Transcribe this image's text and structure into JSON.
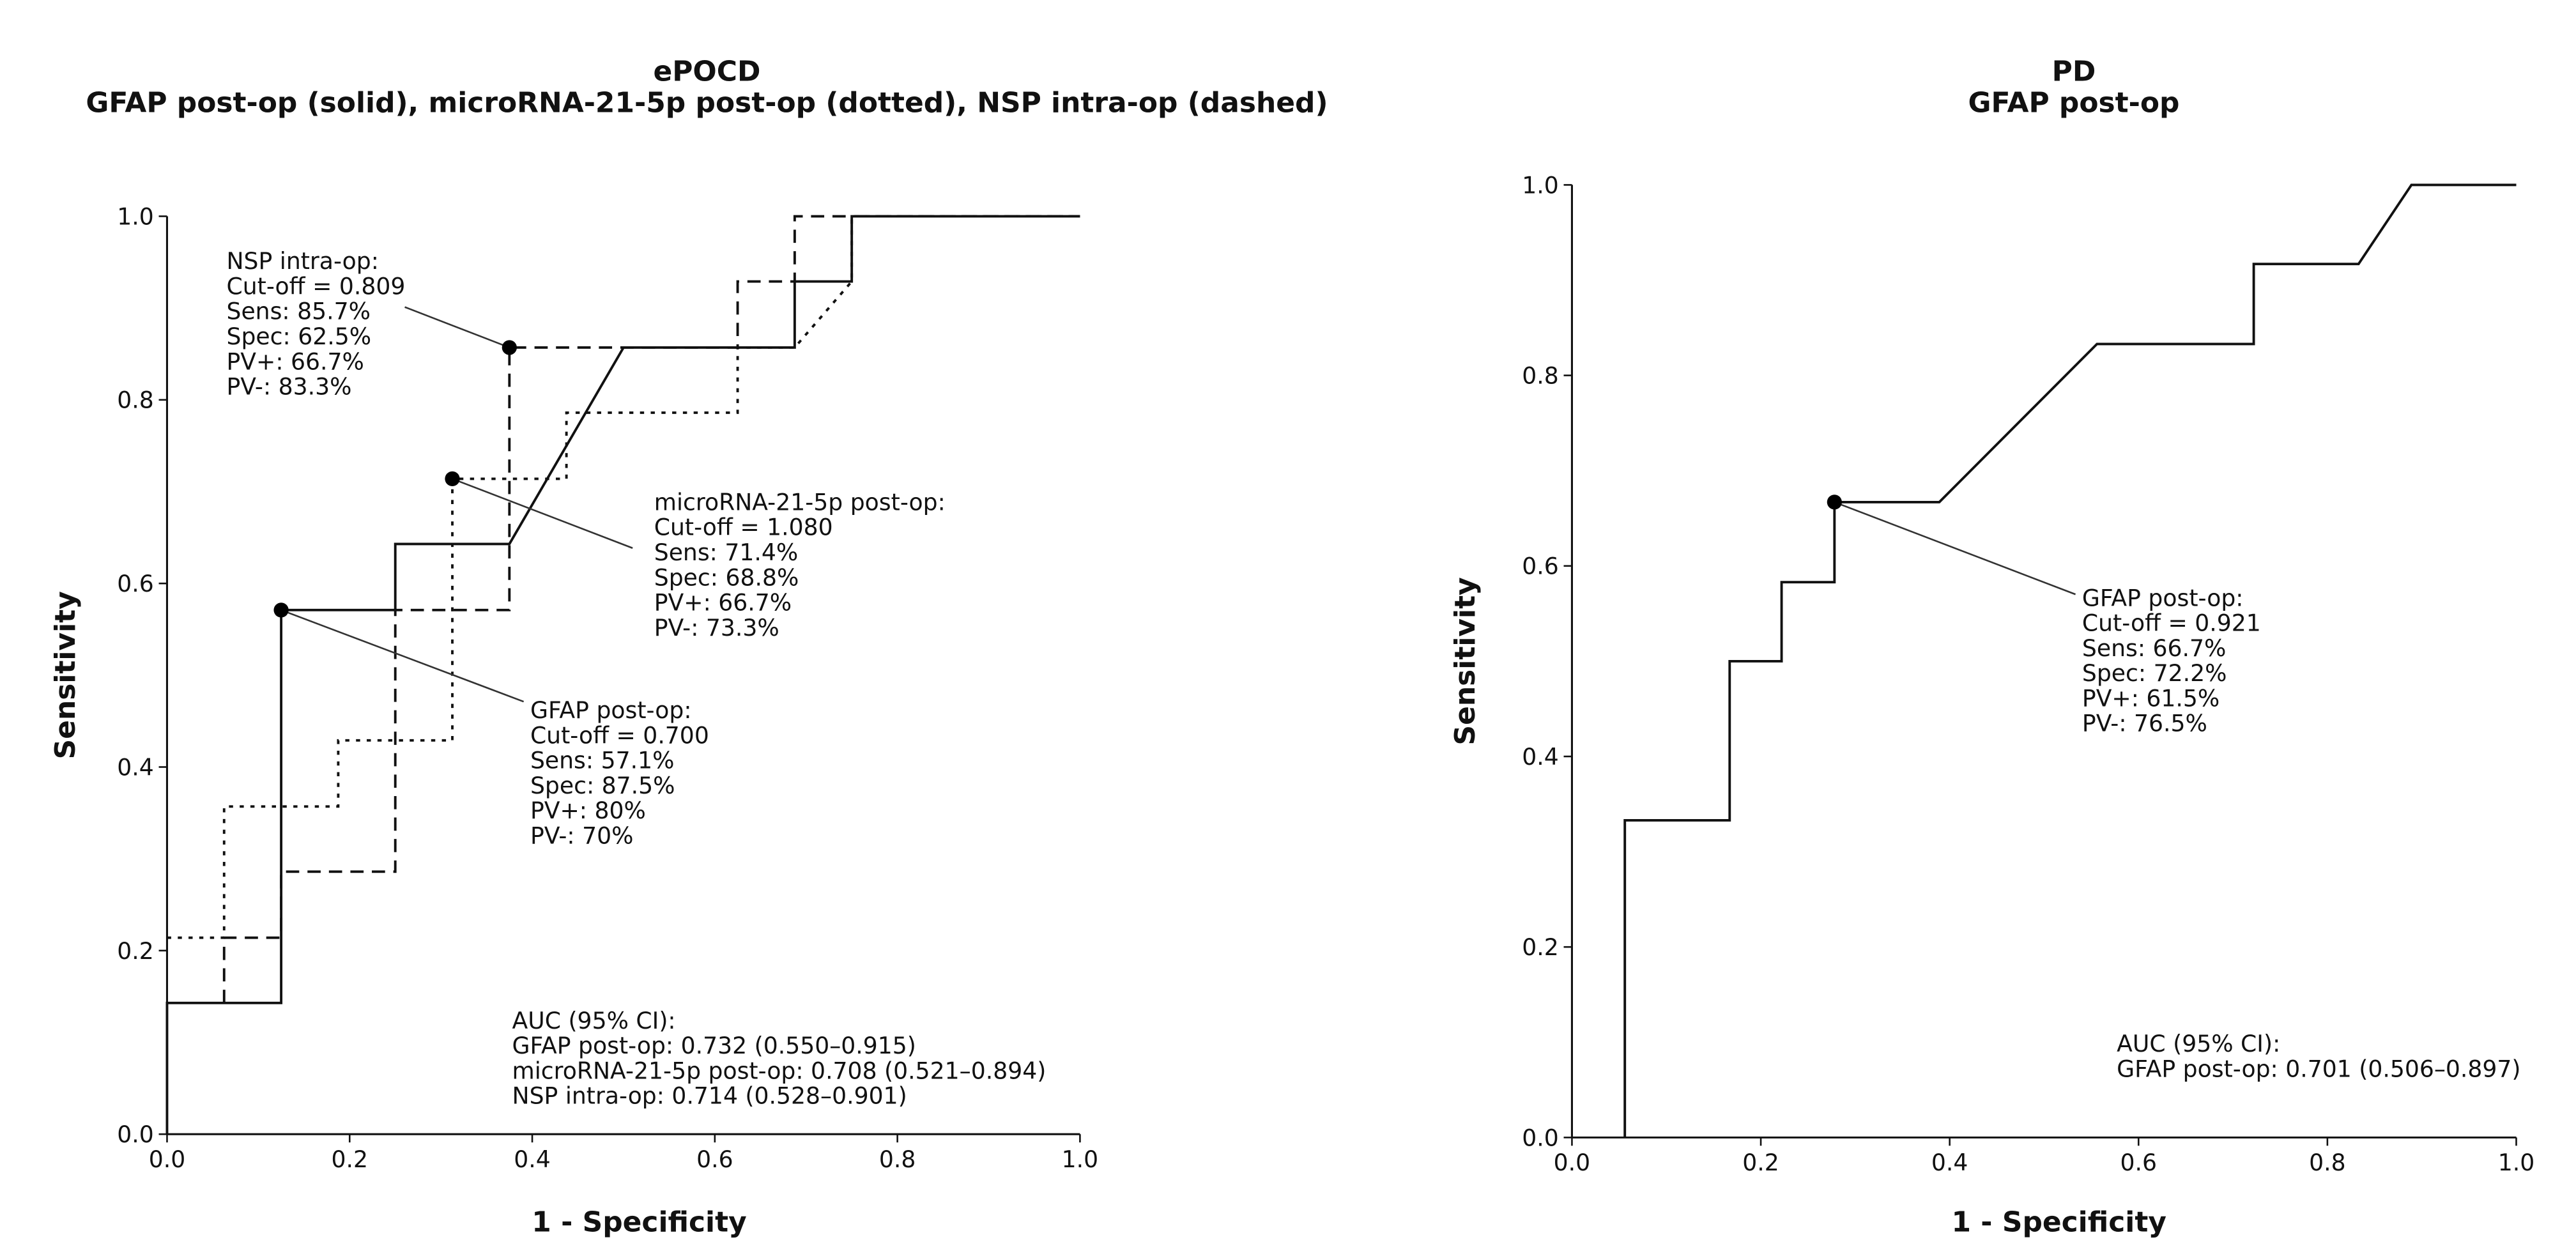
{
  "chart_data": [
    {
      "type": "line",
      "title": "ePOCD",
      "subtitle": "GFAP post-op (solid), microRNA-21-5p post-op (dotted), NSP intra-op (dashed)",
      "xlabel": "1 - Specificity",
      "ylabel": "Sensitivity",
      "xlim": [
        0,
        1
      ],
      "ylim": [
        0,
        1
      ],
      "xticks": [
        {
          "value": 0,
          "label": "0.0"
        },
        0.2,
        0.4,
        0.6,
        0.8,
        {
          "value": 1,
          "label": "1.0"
        }
      ],
      "yticks": [
        {
          "value": 0,
          "label": "0.0"
        },
        0.2,
        0.4,
        0.6,
        0.8,
        {
          "value": 1,
          "label": "1.0"
        }
      ],
      "series": [
        {
          "color": "#111111",
          "style": "solid",
          "x": [
            0,
            0,
            0.125,
            0.125,
            0.25,
            0.25,
            0.375,
            0.5,
            0.6875,
            0.6875,
            0.75,
            0.75,
            1
          ],
          "y": [
            0,
            0.143,
            0.143,
            0.571,
            0.571,
            0.643,
            0.643,
            0.857,
            0.857,
            0.929,
            0.929,
            1,
            1
          ]
        },
        {
          "color": "#111111",
          "style": "dotted",
          "x": [
            0,
            0.0625,
            0.0625,
            0.1875,
            0.1875,
            0.3125,
            0.3125,
            0.4375,
            0.4375,
            0.625,
            0.625,
            0.6875,
            0.75,
            0.75,
            1
          ],
          "y": [
            0.214,
            0.214,
            0.357,
            0.357,
            0.429,
            0.429,
            0.714,
            0.714,
            0.786,
            0.786,
            0.857,
            0.857,
            0.929,
            1,
            1
          ]
        },
        {
          "color": "#111111",
          "style": "dashed",
          "x": [
            0.0625,
            0.0625,
            0.125,
            0.125,
            0.25,
            0.25,
            0.375,
            0.375,
            0.625,
            0.625,
            0.6875,
            0.6875,
            1
          ],
          "y": [
            0.143,
            0.214,
            0.214,
            0.286,
            0.286,
            0.571,
            0.571,
            0.857,
            0.857,
            0.929,
            0.929,
            1,
            1
          ]
        }
      ],
      "annotations": [
        {
          "x": 0.375,
          "y": 0.857,
          "lines": [
            "NSP intra-op:",
            "Cut-off = 0.809",
            "Sens: 85.7%",
            "Spec: 62.5%",
            "PV+: 66.7%",
            "PV-: 83.3%"
          ]
        },
        {
          "x": 0.3125,
          "y": 0.714,
          "lines": [
            "microRNA-21-5p post-op:",
            "Cut-off = 1.080",
            "Sens: 71.4%",
            "Spec: 68.8%",
            "PV+: 66.7%",
            "PV-: 73.3%"
          ]
        },
        {
          "x": 0.125,
          "y": 0.571,
          "lines": [
            "GFAP post-op:",
            "Cut-off = 0.700",
            "Sens: 57.1%",
            "Spec: 87.5%",
            "PV+: 80%",
            "PV-: 70%"
          ]
        }
      ],
      "auc_text": [
        "AUC (95% CI):",
        "GFAP post-op: 0.732 (0.550–0.915)",
        "microRNA-21-5p post-op: 0.708 (0.521–0.894)",
        "NSP intra-op: 0.714 (0.528–0.901)"
      ]
    },
    {
      "type": "line",
      "title": "PD",
      "subtitle": "GFAP post-op",
      "xlabel": "1 - Specificity",
      "ylabel": "Sensitivity",
      "xlim": [
        0,
        1
      ],
      "ylim": [
        0,
        1
      ],
      "xticks": [
        {
          "value": 0,
          "label": "0.0"
        },
        0.2,
        0.4,
        0.6,
        0.8,
        {
          "value": 1,
          "label": "1.0"
        }
      ],
      "yticks": [
        {
          "value": 0,
          "label": "0.0"
        },
        0.2,
        0.4,
        0.6,
        0.8,
        {
          "value": 1,
          "label": "1.0"
        }
      ],
      "series": [
        {
          "color": "#111111",
          "style": "solid",
          "x": [
            0.056,
            0.056,
            0.167,
            0.167,
            0.222,
            0.222,
            0.278,
            0.278,
            0.389,
            0.556,
            0.722,
            0.722,
            0.833,
            0.889,
            1
          ],
          "y": [
            0,
            0.333,
            0.333,
            0.5,
            0.5,
            0.583,
            0.583,
            0.667,
            0.667,
            0.833,
            0.833,
            0.917,
            0.917,
            1,
            1
          ]
        }
      ],
      "annotations": [
        {
          "x": 0.278,
          "y": 0.667,
          "lines": [
            "GFAP post-op:",
            "Cut-off = 0.921",
            "Sens: 66.7%",
            "Spec: 72.2%",
            "PV+: 61.5%",
            "PV-: 76.5%"
          ]
        }
      ],
      "auc_text": [
        "AUC (95% CI):",
        "GFAP post-op: 0.701 (0.506–0.897)"
      ]
    }
  ]
}
